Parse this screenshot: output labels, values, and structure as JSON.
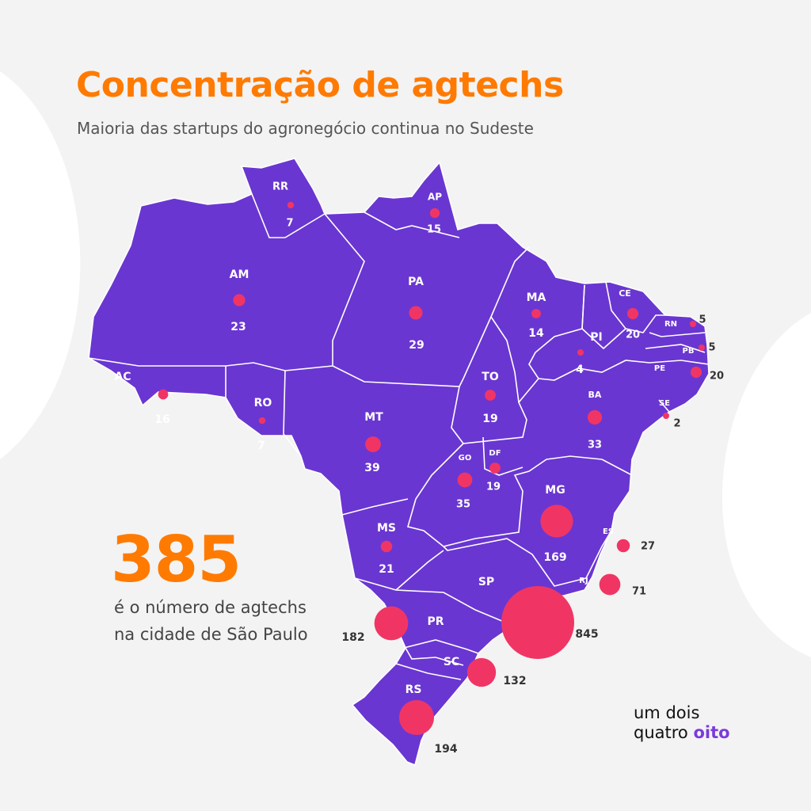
{
  "colors": {
    "background": "#f3f3f3",
    "map_fill": "#6a36d1",
    "border": "#ffffff",
    "bubble": "#f03565",
    "title": "#ff7a00",
    "stat": "#ff7a00",
    "logo_accent": "#7a3bdc"
  },
  "title": "Concentração de agtechs",
  "subtitle": "Maioria das startups do agronegócio continua no Sudeste",
  "stat": {
    "number": "385",
    "text": "é o número de agtechs na cidade de São Paulo"
  },
  "logo": {
    "line1": "um dois",
    "line2a": "quatro",
    "line2b": "oito"
  },
  "states": [
    {
      "uf": "RR",
      "count": "7"
    },
    {
      "uf": "AP",
      "count": "15"
    },
    {
      "uf": "AM",
      "count": "23"
    },
    {
      "uf": "PA",
      "count": "29"
    },
    {
      "uf": "MA",
      "count": "14"
    },
    {
      "uf": "CE",
      "count": "20"
    },
    {
      "uf": "RN",
      "count": "5"
    },
    {
      "uf": "PB",
      "count": "5"
    },
    {
      "uf": "PE",
      "count": "20"
    },
    {
      "uf": "PI",
      "count": "4"
    },
    {
      "uf": "AC",
      "count": "16"
    },
    {
      "uf": "RO",
      "count": "7"
    },
    {
      "uf": "TO",
      "count": "19"
    },
    {
      "uf": "BA",
      "count": "33"
    },
    {
      "uf": "SE",
      "count": "2"
    },
    {
      "uf": "MT",
      "count": "39"
    },
    {
      "uf": "GO",
      "count": "35"
    },
    {
      "uf": "DF",
      "count": "19"
    },
    {
      "uf": "MG",
      "count": "169"
    },
    {
      "uf": "ES",
      "count": "27"
    },
    {
      "uf": "MS",
      "count": "21"
    },
    {
      "uf": "RJ",
      "count": "71"
    },
    {
      "uf": "SP",
      "count": "845"
    },
    {
      "uf": "PR",
      "count": "182"
    },
    {
      "uf": "SC",
      "count": "132"
    },
    {
      "uf": "RS",
      "count": "194"
    }
  ]
}
